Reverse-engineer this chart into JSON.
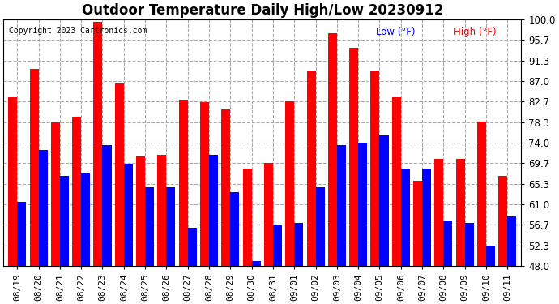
{
  "title": "Outdoor Temperature Daily High/Low 20230912",
  "copyright": "Copyright 2023 Cartronics.com",
  "legend_low": "Low (°F)",
  "legend_high": "High (°F)",
  "color_low": "blue",
  "color_high": "red",
  "background_color": "#ffffff",
  "grid_color": "#aaaaaa",
  "ylim": [
    48.0,
    100.0
  ],
  "yticks": [
    48.0,
    52.3,
    56.7,
    61.0,
    65.3,
    69.7,
    74.0,
    78.3,
    82.7,
    87.0,
    91.3,
    95.7,
    100.0
  ],
  "dates": [
    "08/19",
    "08/20",
    "08/21",
    "08/22",
    "08/23",
    "08/24",
    "08/25",
    "08/26",
    "08/27",
    "08/28",
    "08/29",
    "08/30",
    "08/31",
    "09/01",
    "09/02",
    "09/03",
    "09/04",
    "09/05",
    "09/06",
    "09/07",
    "09/08",
    "09/09",
    "09/10",
    "09/11"
  ],
  "highs": [
    83.5,
    89.5,
    78.3,
    79.5,
    99.5,
    86.5,
    71.0,
    71.5,
    83.0,
    82.5,
    81.0,
    68.5,
    69.7,
    82.7,
    89.0,
    97.0,
    94.0,
    89.0,
    83.5,
    66.0,
    70.5,
    70.5,
    78.5,
    67.0
  ],
  "lows": [
    61.5,
    72.5,
    67.0,
    67.5,
    73.5,
    69.5,
    64.5,
    64.5,
    56.0,
    71.5,
    63.5,
    49.0,
    56.5,
    57.0,
    64.5,
    73.5,
    74.0,
    75.5,
    68.5,
    68.5,
    57.5,
    57.0,
    52.3,
    58.5
  ]
}
